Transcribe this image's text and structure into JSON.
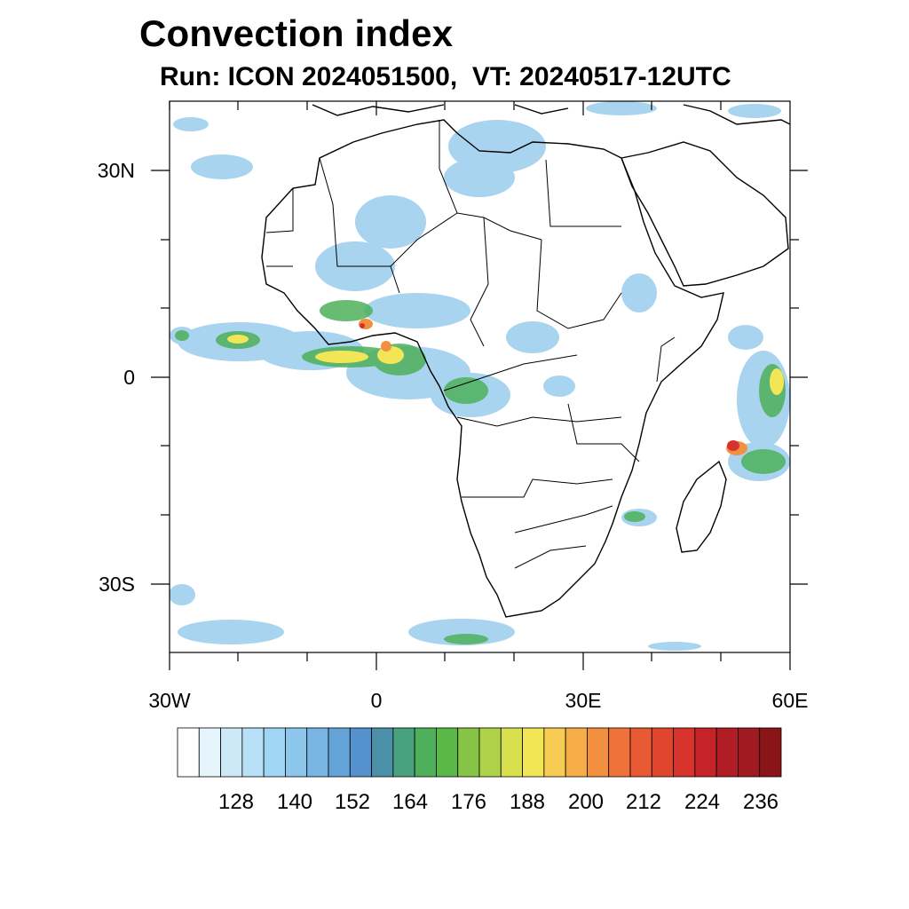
{
  "title": "Convection index",
  "subtitle": "Run: ICON 2024051500,  VT: 20240517-12UTC",
  "axes": {
    "lat_labels": [
      "30N",
      "0",
      "30S"
    ],
    "lon_labels": [
      "30W",
      "0",
      "30E",
      "60E"
    ]
  },
  "colorbar": {
    "labels": [
      "128",
      "140",
      "152",
      "164",
      "176",
      "188",
      "200",
      "212",
      "224",
      "236"
    ],
    "colors": [
      "#ffffff",
      "#e6f4fc",
      "#cde9f7",
      "#b8e0f6",
      "#9fd6f3",
      "#8cc6ea",
      "#79b5e2",
      "#65a4d9",
      "#5591cd",
      "#4b8fa8",
      "#49a27f",
      "#4eb05a",
      "#59b848",
      "#86c445",
      "#aed24a",
      "#d8e04e",
      "#f2e656",
      "#f7cc52",
      "#f6ad48",
      "#f39040",
      "#ee723a",
      "#e85a33",
      "#e0452e",
      "#d7322b",
      "#c52328",
      "#b01d24",
      "#9f1a21",
      "#8a1519"
    ]
  },
  "legend": {
    "colors": {
      "coast": "#000000"
    }
  }
}
